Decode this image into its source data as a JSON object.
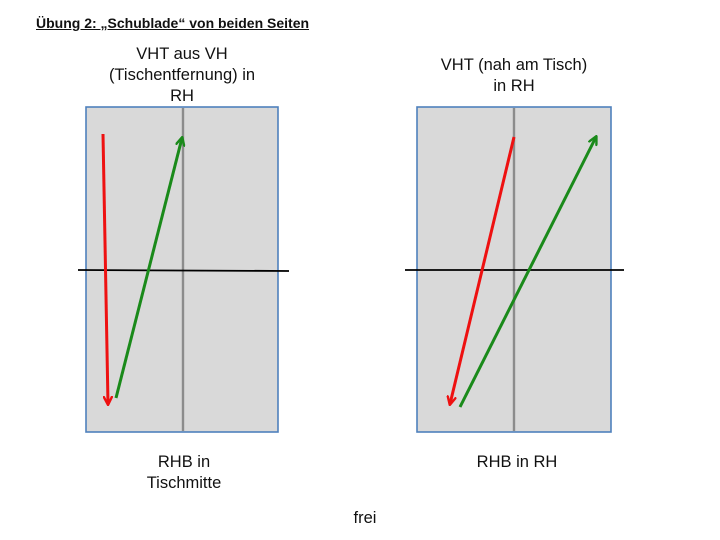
{
  "title": "Übung 2: „Schublade“ von beiden Seiten",
  "panels": [
    {
      "top_label": [
        "VHT aus VH",
        "(Tischentfernung) in",
        "RH"
      ],
      "bottom_label": [
        "RHB in",
        "Tischmitte"
      ]
    },
    {
      "top_label": [
        "VHT (nah am Tisch)",
        "in RH"
      ],
      "bottom_label": [
        "RHB in RH"
      ]
    }
  ],
  "footer": "frei",
  "colors": {
    "table_fill": "#d9d9d9",
    "table_border": "#4f81bd",
    "center_line": "#8c8c8c",
    "net_line": "#000000",
    "red_arrow": "#ee1111",
    "green_arrow": "#1a8a1a"
  }
}
